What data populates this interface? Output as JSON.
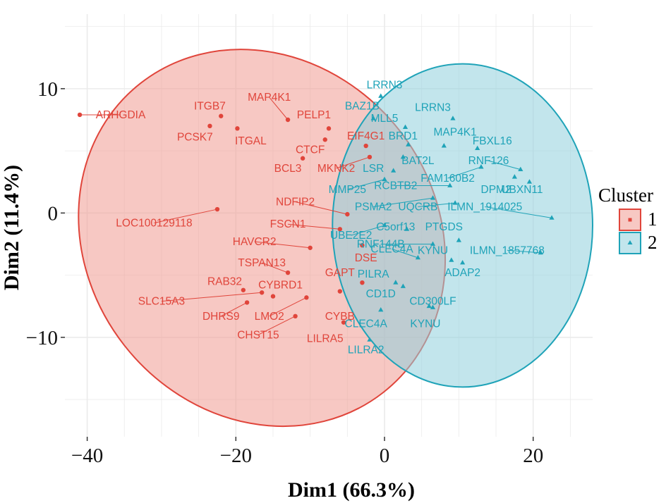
{
  "chart_data": {
    "type": "scatter",
    "xlabel": "Dim1 (66.3%)",
    "ylabel": "Dim2 (11.4%)",
    "xlim": [
      -43,
      28
    ],
    "ylim": [
      -18,
      16
    ],
    "xticks": [
      -40,
      -20,
      0,
      20
    ],
    "yticks": [
      10,
      0,
      -10
    ],
    "grid": true,
    "legend": {
      "title": "Cluster",
      "position": "right",
      "entries": [
        "1",
        "2"
      ]
    },
    "colors": {
      "cluster1": "#e0453b",
      "cluster2": "#1fa3b8",
      "fill1": "#f09a92",
      "fill2": "#8fcfdc"
    },
    "ellipses": [
      {
        "cluster": "1",
        "center": [
          -16.5,
          -2.0
        ],
        "rx": 23.5,
        "ry": 15.8,
        "angle_deg": -38
      },
      {
        "cluster": "2",
        "center": [
          10.5,
          -1.0
        ],
        "rx": 17.5,
        "ry": 13.0,
        "angle_deg": 0
      }
    ],
    "series": [
      {
        "name": "1",
        "points": [
          {
            "label": "ARHGDIA",
            "x": -41,
            "y": 7.9
          },
          {
            "label": "ITGB7",
            "x": -22,
            "y": 7.8
          },
          {
            "label": "MAP4K1",
            "x": -13,
            "y": 7.5
          },
          {
            "label": "PELP1",
            "x": -7.5,
            "y": 6.8
          },
          {
            "label": "PCSK7",
            "x": -23.5,
            "y": 7.0
          },
          {
            "label": "ITGAL",
            "x": -19.8,
            "y": 6.8
          },
          {
            "label": "EIF4G1",
            "x": -2.5,
            "y": 5.4
          },
          {
            "label": "CTCF",
            "x": -8,
            "y": 5.9
          },
          {
            "label": "BCL3",
            "x": -11,
            "y": 4.4
          },
          {
            "label": "MKNK2",
            "x": -2,
            "y": 4.5
          },
          {
            "label": "NDFIP2",
            "x": -5,
            "y": -0.1
          },
          {
            "label": "LOC100129118",
            "x": -22.5,
            "y": 0.3
          },
          {
            "label": "FSCN1",
            "x": -6,
            "y": -1.3
          },
          {
            "label": "HAVCR2",
            "x": -10,
            "y": -2.8
          },
          {
            "label": "DSE",
            "x": -3,
            "y": -2.6
          },
          {
            "label": "TSPAN13",
            "x": -13,
            "y": -4.8
          },
          {
            "label": "GAPT",
            "x": -3,
            "y": -5.6
          },
          {
            "label": "RAB32",
            "x": -19,
            "y": -6.2
          },
          {
            "label": "CYBRD1",
            "x": -15,
            "y": -6.7
          },
          {
            "label": "SLC15A3",
            "x": -16.5,
            "y": -6.4
          },
          {
            "label": "DHRS9",
            "x": -18.5,
            "y": -7.2
          },
          {
            "label": "LMO2",
            "x": -10.5,
            "y": -6.8
          },
          {
            "label": "CYBB",
            "x": -6,
            "y": -6.3
          },
          {
            "label": "CHST15",
            "x": -12,
            "y": -8.3
          },
          {
            "label": "LILRA5",
            "x": -5.5,
            "y": -8.8
          }
        ]
      },
      {
        "name": "2",
        "points": [
          {
            "label": "LRRN3",
            "x": -0.5,
            "y": 9.4
          },
          {
            "label": "BAZ1B",
            "x": -1.5,
            "y": 7.6
          },
          {
            "label": "MLL5",
            "x": 2.8,
            "y": 6.9
          },
          {
            "label": "LRRN3",
            "x": 9.2,
            "y": 7.6
          },
          {
            "label": "BRD1",
            "x": 3.2,
            "y": 5.5
          },
          {
            "label": "MAP4K1",
            "x": 8,
            "y": 5.4
          },
          {
            "label": "FBXL16",
            "x": 12.5,
            "y": 5.2
          },
          {
            "label": "BAT2L",
            "x": 2.5,
            "y": 4.5
          },
          {
            "label": "RNF126",
            "x": 18.3,
            "y": 3.5
          },
          {
            "label": "FAM160B2",
            "x": 13,
            "y": 3.7
          },
          {
            "label": "LSR",
            "x": 1.2,
            "y": 3.4
          },
          {
            "label": "RCBTB2",
            "x": 8.8,
            "y": 2.2
          },
          {
            "label": "DPM2",
            "x": 17.5,
            "y": 2.9
          },
          {
            "label": "MMP25",
            "x": 0,
            "y": 2.7
          },
          {
            "label": "UBXN11",
            "x": 19.5,
            "y": 2.5
          },
          {
            "label": "PSMA2",
            "x": 6.5,
            "y": 1.2
          },
          {
            "label": "UQCRB",
            "x": 9.5,
            "y": 0.8
          },
          {
            "label": "ILMN_1914025",
            "x": 22.5,
            "y": -0.4
          },
          {
            "label": "UBE2E2",
            "x": 0,
            "y": -1.0
          },
          {
            "label": "C5orf13",
            "x": 3,
            "y": -1.3
          },
          {
            "label": "PTGDS",
            "x": 10,
            "y": -2.2
          },
          {
            "label": "RNF144B",
            "x": 6.5,
            "y": -2.5
          },
          {
            "label": "KYNU",
            "x": 9,
            "y": -3.8
          },
          {
            "label": "ILMN_1857768",
            "x": 21,
            "y": -3.2
          },
          {
            "label": "ADAP2",
            "x": 10.5,
            "y": -4.0
          },
          {
            "label": "CLEC4A",
            "x": 4.5,
            "y": -3.6
          },
          {
            "label": "PILRA",
            "x": 1.5,
            "y": -5.6
          },
          {
            "label": "CD1D",
            "x": 2.5,
            "y": -5.9
          },
          {
            "label": "CD300LF",
            "x": 6,
            "y": -7.5
          },
          {
            "label": "CLEC4A",
            "x": -0.5,
            "y": -7.8
          },
          {
            "label": "KYNU",
            "x": 6.5,
            "y": -7.6
          },
          {
            "label": "LILRA2",
            "x": -2,
            "y": -10.2
          }
        ]
      }
    ],
    "label_positions": {
      "1": [
        [
          -35.5,
          7.9
        ],
        [
          -23.5,
          8.6
        ],
        [
          -15.5,
          9.3
        ],
        [
          -9.5,
          7.9
        ],
        [
          -25.5,
          6.1
        ],
        [
          -18,
          5.8
        ],
        [
          -2.5,
          6.2
        ],
        [
          -10,
          5.1
        ],
        [
          -13,
          3.6
        ],
        [
          -6.5,
          3.6
        ],
        [
          -12,
          0.9
        ],
        [
          -31,
          -0.8
        ],
        [
          -13,
          -0.9
        ],
        [
          -17.5,
          -2.3
        ],
        [
          -2.5,
          -3.6
        ],
        [
          -16.5,
          -4.0
        ],
        [
          -6,
          -4.8
        ],
        [
          -21.5,
          -5.5
        ],
        [
          -14,
          -5.8
        ],
        [
          -30,
          -7.1
        ],
        [
          -22,
          -8.3
        ],
        [
          -15.5,
          -8.3
        ],
        [
          -6,
          -8.3
        ],
        [
          -17,
          -9.8
        ],
        [
          -8,
          -10.1
        ]
      ],
      "2": [
        [
          0,
          10.3
        ],
        [
          -3,
          8.6
        ],
        [
          0,
          7.6
        ],
        [
          6.5,
          8.5
        ],
        [
          2.5,
          6.2
        ],
        [
          9.5,
          6.5
        ],
        [
          14.5,
          5.8
        ],
        [
          4.5,
          4.2
        ],
        [
          14,
          4.2
        ],
        [
          8.5,
          2.8
        ],
        [
          -1.5,
          3.6
        ],
        [
          1.5,
          2.2
        ],
        [
          15,
          1.9
        ],
        [
          -5,
          1.9
        ],
        [
          18.5,
          1.9
        ],
        [
          -1.5,
          0.5
        ],
        [
          4.5,
          0.5
        ],
        [
          13.5,
          0.5
        ],
        [
          -4.5,
          -1.8
        ],
        [
          1.5,
          -1.1
        ],
        [
          8,
          -1.1
        ],
        [
          -0.5,
          -2.5
        ],
        [
          6.5,
          -3.0
        ],
        [
          16.5,
          -3.0
        ],
        [
          10.5,
          -4.8
        ],
        [
          1,
          -2.9
        ],
        [
          -1.5,
          -4.9
        ],
        [
          -0.5,
          -6.5
        ],
        [
          6.5,
          -7.1
        ],
        [
          -2.5,
          -8.9
        ],
        [
          5.5,
          -8.9
        ],
        [
          -2.5,
          -11.0
        ]
      ]
    }
  }
}
